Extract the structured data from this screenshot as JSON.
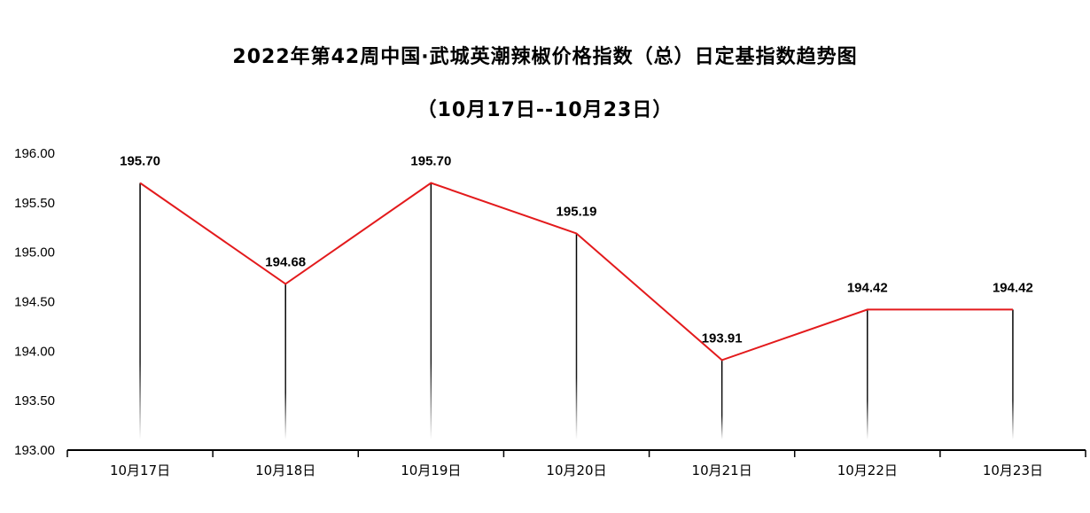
{
  "chart_data": {
    "type": "line",
    "title": "2022年第42周中国·武城英潮辣椒价格指数（总）日定基指数趋势图",
    "subtitle": "（10月17日--10月23日）",
    "categories": [
      "10月17日",
      "10月18日",
      "10月19日",
      "10月20日",
      "10月21日",
      "10月22日",
      "10月23日"
    ],
    "values": [
      195.7,
      194.68,
      195.7,
      195.19,
      193.91,
      194.42,
      194.42
    ],
    "value_labels": [
      "195.70",
      "194.68",
      "195.70",
      "195.19",
      "193.91",
      "194.42",
      "194.42"
    ],
    "ylim": [
      193.0,
      196.0
    ],
    "yticks": [
      "193.00",
      "193.50",
      "194.00",
      "194.50",
      "195.00",
      "195.50",
      "196.00"
    ],
    "ytick_values": [
      193.0,
      193.5,
      194.0,
      194.5,
      195.0,
      195.5,
      196.0
    ],
    "grid": false,
    "drop_lines": true,
    "line_color": "#e31a1c",
    "drop_line_color": "#000000"
  }
}
